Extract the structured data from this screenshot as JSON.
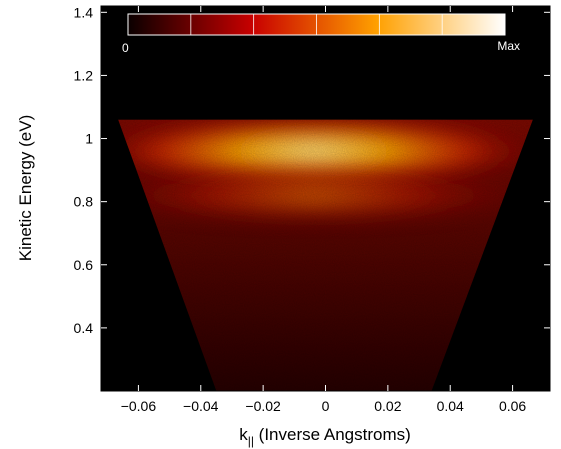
{
  "chart_data": {
    "type": "heatmap",
    "title": "",
    "xlabel": "k",
    "xlabel_subscript": "||",
    "xlabel_suffix": " (Inverse Angstroms)",
    "ylabel": "Kinetic Energy (eV)",
    "xlim": [
      -0.072,
      0.072
    ],
    "ylim": [
      0.2,
      1.42
    ],
    "x_ticks": [
      -0.06,
      -0.04,
      -0.02,
      0,
      0.02,
      0.04,
      0.06
    ],
    "x_tick_labels": [
      "−0.06",
      "−0.04",
      "−0.02",
      "0",
      "0.02",
      "0.04",
      "0.06"
    ],
    "y_ticks": [
      0.4,
      0.6,
      0.8,
      1.0,
      1.2,
      1.4
    ],
    "y_tick_labels": [
      "0.4",
      "0.6",
      "0.8",
      "1",
      "1.2",
      "1.4"
    ],
    "colormap": "hot",
    "background_color": "#000000",
    "colorbar": {
      "min_label": "0",
      "max_label": "Max",
      "position": "top-inside",
      "orientation": "horizontal"
    },
    "intensity_bands": [
      {
        "energy_eV": 0.96,
        "relative_intensity": 1.0
      },
      {
        "energy_eV": 0.82,
        "relative_intensity": 0.55
      }
    ],
    "grid": false
  }
}
